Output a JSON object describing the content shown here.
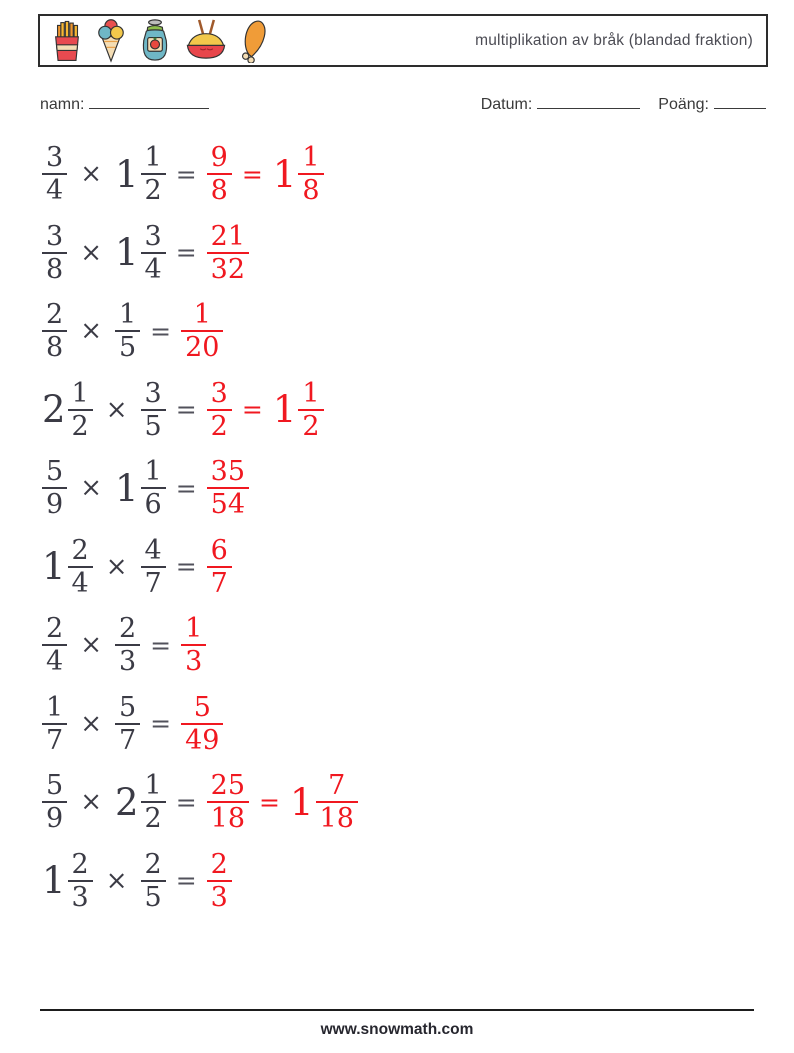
{
  "header": {
    "title": "multiplikation av bråk (blandad fraktion)",
    "icons": [
      "fries-icon",
      "ice-cream-icon",
      "jar-icon",
      "rice-bowl-icon",
      "drumstick-icon"
    ]
  },
  "fields": {
    "name_label": "namn:",
    "date_label": "Datum:",
    "points_label": "Poäng:"
  },
  "symbols": {
    "multiply": "×",
    "equals": "="
  },
  "problems": [
    {
      "factor1": {
        "whole": null,
        "num": "3",
        "den": "4"
      },
      "factor2": {
        "whole": "1",
        "num": "1",
        "den": "2"
      },
      "answer": {
        "whole": null,
        "num": "9",
        "den": "8"
      },
      "mixed_answer": {
        "whole": "1",
        "num": "1",
        "den": "8"
      }
    },
    {
      "factor1": {
        "whole": null,
        "num": "3",
        "den": "8"
      },
      "factor2": {
        "whole": "1",
        "num": "3",
        "den": "4"
      },
      "answer": {
        "whole": null,
        "num": "21",
        "den": "32"
      },
      "mixed_answer": null
    },
    {
      "factor1": {
        "whole": null,
        "num": "2",
        "den": "8"
      },
      "factor2": {
        "whole": null,
        "num": "1",
        "den": "5"
      },
      "answer": {
        "whole": null,
        "num": "1",
        "den": "20"
      },
      "mixed_answer": null
    },
    {
      "factor1": {
        "whole": "2",
        "num": "1",
        "den": "2"
      },
      "factor2": {
        "whole": null,
        "num": "3",
        "den": "5"
      },
      "answer": {
        "whole": null,
        "num": "3",
        "den": "2"
      },
      "mixed_answer": {
        "whole": "1",
        "num": "1",
        "den": "2"
      }
    },
    {
      "factor1": {
        "whole": null,
        "num": "5",
        "den": "9"
      },
      "factor2": {
        "whole": "1",
        "num": "1",
        "den": "6"
      },
      "answer": {
        "whole": null,
        "num": "35",
        "den": "54"
      },
      "mixed_answer": null
    },
    {
      "factor1": {
        "whole": "1",
        "num": "2",
        "den": "4"
      },
      "factor2": {
        "whole": null,
        "num": "4",
        "den": "7"
      },
      "answer": {
        "whole": null,
        "num": "6",
        "den": "7"
      },
      "mixed_answer": null
    },
    {
      "factor1": {
        "whole": null,
        "num": "2",
        "den": "4"
      },
      "factor2": {
        "whole": null,
        "num": "2",
        "den": "3"
      },
      "answer": {
        "whole": null,
        "num": "1",
        "den": "3"
      },
      "mixed_answer": null
    },
    {
      "factor1": {
        "whole": null,
        "num": "1",
        "den": "7"
      },
      "factor2": {
        "whole": null,
        "num": "5",
        "den": "7"
      },
      "answer": {
        "whole": null,
        "num": "5",
        "den": "49"
      },
      "mixed_answer": null
    },
    {
      "factor1": {
        "whole": null,
        "num": "5",
        "den": "9"
      },
      "factor2": {
        "whole": "2",
        "num": "1",
        "den": "2"
      },
      "answer": {
        "whole": null,
        "num": "25",
        "den": "18"
      },
      "mixed_answer": {
        "whole": "1",
        "num": "7",
        "den": "18"
      }
    },
    {
      "factor1": {
        "whole": "1",
        "num": "2",
        "den": "3"
      },
      "factor2": {
        "whole": null,
        "num": "2",
        "den": "5"
      },
      "answer": {
        "whole": null,
        "num": "2",
        "den": "3"
      },
      "mixed_answer": null
    }
  ],
  "footer": {
    "url": "www.snowmath.com"
  },
  "colors": {
    "math_dark": "#3b3b45",
    "answer_red": "#f01820",
    "operator_gray": "#51515b"
  }
}
